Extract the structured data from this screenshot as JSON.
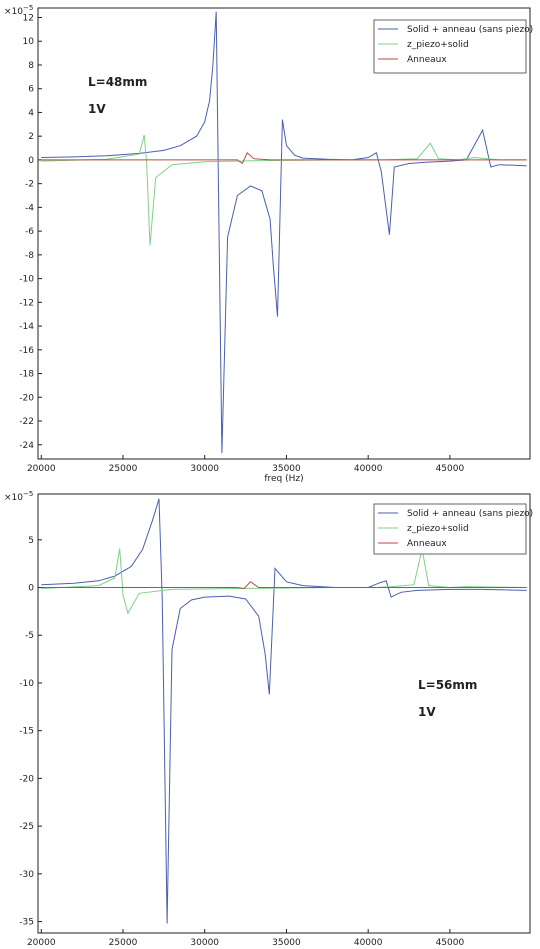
{
  "chart_data": [
    {
      "type": "line",
      "multiplier": "×10",
      "multiplier_exp": "−5",
      "xlabel": "freq (Hz)",
      "ylabel": "",
      "xlim": [
        19800,
        49900
      ],
      "ylim": [
        -25.2,
        12.8
      ],
      "xticks": [
        20000,
        25000,
        30000,
        35000,
        40000,
        45000
      ],
      "yticks": [
        12,
        10,
        8,
        6,
        4,
        2,
        0,
        -2,
        -4,
        -6,
        -8,
        -10,
        -12,
        -14,
        -16,
        -18,
        -20,
        -22,
        -24
      ],
      "annotations": [
        "L=48mm",
        "1V"
      ],
      "legend_position": "top-right",
      "series": [
        {
          "name": "Solid + anneau (sans piezo)",
          "color": "#4a5fb0",
          "x": [
            20000,
            22000,
            24000,
            26000,
            27500,
            28500,
            29500,
            30000,
            30300,
            30500,
            30700,
            31050,
            31400,
            32000,
            32800,
            33500,
            34000,
            34200,
            34450,
            34750,
            35000,
            35500,
            36000,
            37500,
            39000,
            40000,
            40500,
            40800,
            41300,
            41600,
            42500,
            43500,
            45000,
            46000,
            47000,
            47500,
            48000,
            49000,
            49700
          ],
          "y": [
            0.2,
            0.25,
            0.35,
            0.55,
            0.8,
            1.2,
            2.0,
            3.2,
            5.0,
            8.0,
            12.5,
            -24.7,
            -6.5,
            -3.0,
            -2.2,
            -2.6,
            -5.0,
            -9.0,
            -13.2,
            3.4,
            1.2,
            0.4,
            0.15,
            0.05,
            0.0,
            0.2,
            0.6,
            -1.0,
            -6.3,
            -0.6,
            -0.3,
            -0.2,
            -0.1,
            0.0,
            2.5,
            -0.6,
            -0.4,
            -0.45,
            -0.5
          ]
        },
        {
          "name": "z_piezo+solid",
          "color": "#7fd08a",
          "x": [
            20000,
            24000,
            26000,
            26300,
            26450,
            26650,
            27000,
            28000,
            30000,
            34000,
            38000,
            41000,
            43000,
            43800,
            44300,
            45500,
            46500,
            48000,
            49700
          ],
          "y": [
            -0.1,
            0.05,
            0.5,
            2.1,
            -0.3,
            -7.2,
            -1.5,
            -0.4,
            -0.15,
            -0.05,
            0.0,
            0.0,
            0.1,
            1.4,
            0.1,
            0.0,
            0.2,
            0.0,
            0.0
          ]
        },
        {
          "name": "Anneaux",
          "color": "#b94a3e",
          "x": [
            20000,
            32000,
            32300,
            32600,
            33000,
            34000,
            49700
          ],
          "y": [
            0.0,
            0.0,
            -0.3,
            0.6,
            0.1,
            0.0,
            0.0
          ]
        }
      ]
    },
    {
      "type": "line",
      "multiplier": "×10",
      "multiplier_exp": "−5",
      "xlabel": "",
      "ylabel": "",
      "xlim": [
        19800,
        49900
      ],
      "ylim": [
        -36.2,
        9.8
      ],
      "xticks": [
        20000,
        25000,
        30000,
        35000,
        40000,
        45000
      ],
      "yticks": [
        5,
        0,
        -5,
        -10,
        -15,
        -20,
        -25,
        -30,
        -35
      ],
      "annotations": [
        "L=56mm",
        "1V"
      ],
      "legend_position": "top-right",
      "series": [
        {
          "name": "Solid + anneau (sans piezo)",
          "color": "#4a5fb0",
          "x": [
            20000,
            22000,
            23500,
            24500,
            25500,
            26200,
            26800,
            27200,
            27400,
            27700,
            28000,
            28500,
            29200,
            30000,
            31500,
            32500,
            33300,
            33700,
            33950,
            34300,
            35000,
            36000,
            38000,
            40000,
            40700,
            41100,
            41400,
            42000,
            43000,
            45000,
            47000,
            49700
          ],
          "y": [
            0.3,
            0.45,
            0.7,
            1.2,
            2.2,
            4.0,
            7.0,
            9.3,
            -1.0,
            -35.2,
            -6.5,
            -2.2,
            -1.3,
            -1.0,
            -0.9,
            -1.2,
            -3.0,
            -7.0,
            -11.2,
            2.0,
            0.6,
            0.2,
            0.0,
            0.0,
            0.5,
            0.7,
            -1.0,
            -0.5,
            -0.3,
            -0.2,
            -0.2,
            -0.3
          ]
        },
        {
          "name": "z_piezo+solid",
          "color": "#7fd08a",
          "x": [
            20000,
            23500,
            24500,
            24800,
            25000,
            25300,
            26000,
            28000,
            32000,
            38000,
            40500,
            41500,
            42800,
            43300,
            43700,
            45000,
            46000,
            49700
          ],
          "y": [
            -0.1,
            0.2,
            1.0,
            4.1,
            -0.8,
            -2.7,
            -0.6,
            -0.2,
            -0.1,
            0.0,
            0.0,
            0.1,
            0.3,
            4.0,
            0.2,
            0.0,
            0.1,
            0.0
          ]
        },
        {
          "name": "Anneaux",
          "color": "#b94a3e",
          "x": [
            20000,
            32000,
            32400,
            32800,
            33300,
            34000,
            49700
          ],
          "y": [
            0.0,
            0.0,
            -0.1,
            0.6,
            0.0,
            0.0,
            0.0
          ]
        }
      ]
    }
  ]
}
